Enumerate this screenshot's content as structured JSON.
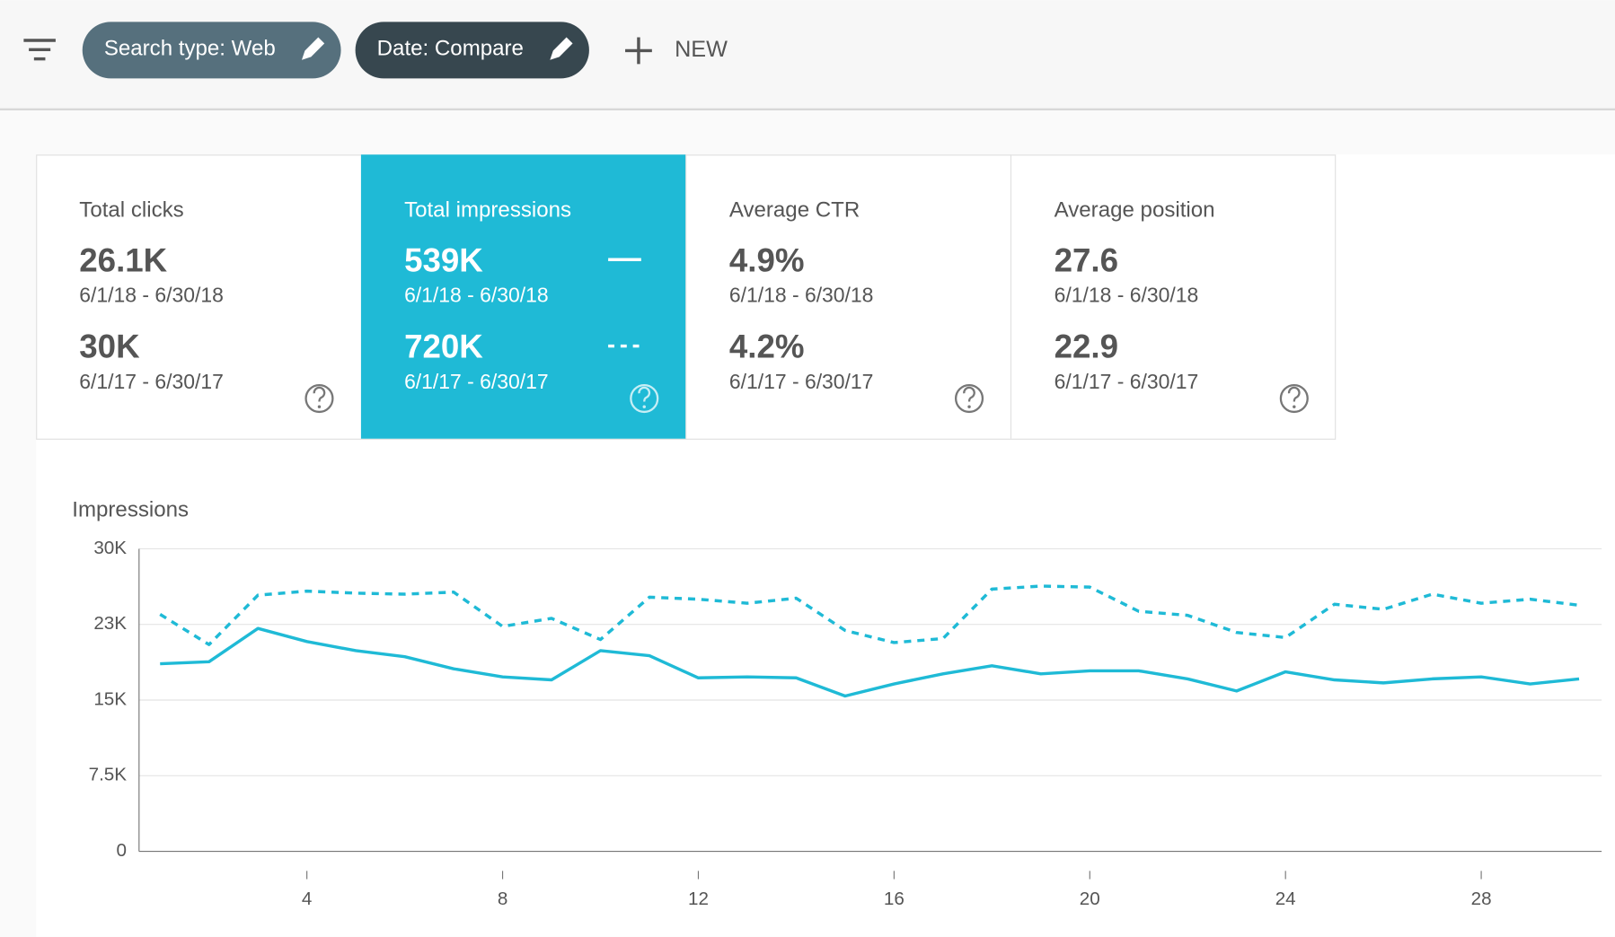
{
  "toolbar": {
    "chips": [
      "Search type: Web",
      "Date: Compare"
    ],
    "new_button": "NEW"
  },
  "cards": [
    {
      "title": "Total clicks",
      "rows": [
        {
          "value": "26.1K",
          "range": "6/1/18 - 6/30/18"
        },
        {
          "value": "30K",
          "range": "6/1/17 - 6/30/17"
        }
      ]
    },
    {
      "title": "Total impressions",
      "rows": [
        {
          "value": "539K",
          "range": "6/1/18 - 6/30/18"
        },
        {
          "value": "720K",
          "range": "6/1/17 - 6/30/17"
        }
      ]
    },
    {
      "title": "Average CTR",
      "rows": [
        {
          "value": "4.9%",
          "range": "6/1/18 - 6/30/18"
        },
        {
          "value": "4.2%",
          "range": "6/1/17 - 6/30/17"
        }
      ]
    },
    {
      "title": "Average position",
      "rows": [
        {
          "value": "27.6",
          "range": "6/1/18 - 6/30/18"
        },
        {
          "value": "22.9",
          "range": "6/1/17 - 6/30/17"
        }
      ]
    }
  ],
  "chart_data": {
    "type": "line",
    "title": "Impressions",
    "x": [
      1,
      2,
      3,
      4,
      5,
      6,
      7,
      8,
      9,
      10,
      11,
      12,
      13,
      14,
      15,
      16,
      17,
      18,
      19,
      20,
      21,
      22,
      23,
      24,
      25,
      26,
      27,
      28,
      29,
      30
    ],
    "series": [
      {
        "color": "#1fbad6",
        "dashed": false,
        "values": [
          18600,
          18800,
          22100,
          20800,
          19900,
          19300,
          18100,
          17300,
          17000,
          19900,
          19400,
          17200,
          17300,
          17200,
          15400,
          16600,
          17600,
          18400,
          17600,
          17900,
          17900,
          17100,
          15900,
          17800,
          17000,
          16700,
          17100,
          17300,
          16600,
          17100
        ]
      },
      {
        "color": "#1fbad6",
        "dashed": true,
        "values": [
          23500,
          20500,
          25400,
          25800,
          25600,
          25500,
          25700,
          22300,
          23100,
          21000,
          25200,
          25000,
          24600,
          25100,
          21900,
          20700,
          21100,
          26000,
          26300,
          26200,
          23800,
          23400,
          21700,
          21200,
          24500,
          24000,
          25500,
          24600,
          25000,
          24400
        ]
      }
    ],
    "xlim": [
      0.57,
      30.46
    ],
    "xticks": [
      4,
      8,
      12,
      16,
      20,
      24,
      28
    ],
    "ylim": [
      0,
      30000
    ],
    "yticks": [
      0,
      {
        "value": 7500,
        "label": "7.5K"
      },
      {
        "value": 15000,
        "label": "15K"
      },
      {
        "value": 22500,
        "label": "23K"
      },
      {
        "value": 30000,
        "label": "30K"
      }
    ],
    "grid": true
  }
}
